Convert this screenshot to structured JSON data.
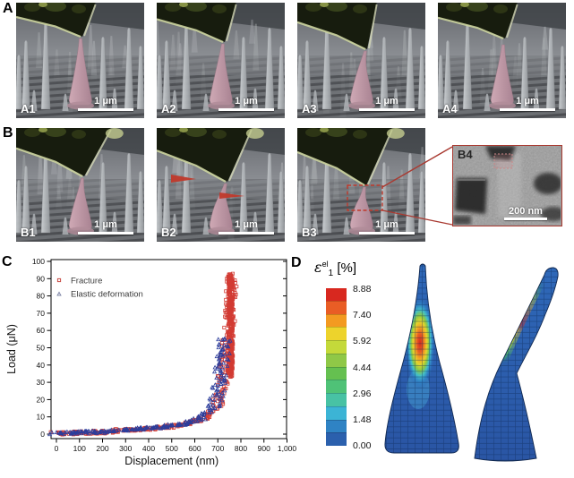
{
  "figure_labels": {
    "A": "A",
    "B": "B",
    "C": "C",
    "D": "D"
  },
  "sem_rows": {
    "A": {
      "panels": [
        {
          "id": "A1",
          "scale_bar": "1 μm"
        },
        {
          "id": "A2",
          "scale_bar": "1 μm"
        },
        {
          "id": "A3",
          "scale_bar": "1 μm"
        },
        {
          "id": "A4",
          "scale_bar": "1 μm"
        }
      ]
    },
    "B": {
      "panels": [
        {
          "id": "B1",
          "scale_bar": "1 μm"
        },
        {
          "id": "B2",
          "scale_bar": "1 μm"
        },
        {
          "id": "B3",
          "scale_bar": "1 μm"
        }
      ],
      "inset": {
        "id": "B4",
        "scale_bar": "200 nm"
      }
    }
  },
  "chart_data": {
    "type": "scatter",
    "title": "",
    "xlabel": "Displacement (nm)",
    "ylabel": "Load (μN)",
    "xlim": [
      0,
      1000
    ],
    "ylim": [
      0,
      100
    ],
    "grid": false,
    "legend_position": "top-left",
    "xtick_labels": [
      "0",
      "100",
      "200",
      "300",
      "400",
      "500",
      "600",
      "700",
      "800",
      "900",
      "1,000"
    ],
    "ytick_labels": [
      "0",
      "10",
      "20",
      "30",
      "40",
      "50",
      "60",
      "70",
      "80",
      "90",
      "100"
    ],
    "legend": [
      {
        "label": "Fracture",
        "marker": "open-square",
        "color": "#c84a44"
      },
      {
        "label": "Elastic deformation",
        "marker": "open-triangle",
        "color": "#8087a8"
      }
    ],
    "series": [
      {
        "name": "Fracture",
        "marker": "open-square",
        "color": "#d23b33",
        "points": [
          [
            0,
            0.4
          ],
          [
            100,
            0.8
          ],
          [
            200,
            1.2
          ],
          [
            300,
            2.4
          ],
          [
            400,
            3.3
          ],
          [
            500,
            4.6
          ],
          [
            560,
            5.8
          ],
          [
            600,
            7.2
          ],
          [
            640,
            9.5
          ],
          [
            670,
            12.5
          ],
          [
            690,
            15
          ],
          [
            705,
            20
          ],
          [
            715,
            26
          ],
          [
            725,
            34
          ],
          [
            733,
            42
          ],
          [
            740,
            50
          ],
          [
            746,
            58
          ],
          [
            752,
            68
          ],
          [
            756,
            78
          ],
          [
            759,
            86
          ],
          [
            760,
            92
          ]
        ],
        "fracture_band": {
          "x_range": [
            745,
            766
          ],
          "y_range": [
            33,
            93
          ]
        }
      },
      {
        "name": "Elastic deformation",
        "marker": "open-triangle",
        "color": "#2c3d9b",
        "points": [
          [
            0,
            0.5
          ],
          [
            100,
            0.9
          ],
          [
            200,
            1.3
          ],
          [
            280,
            2.3
          ],
          [
            320,
            2.7
          ],
          [
            360,
            3.1
          ],
          [
            400,
            3.5
          ],
          [
            450,
            4.1
          ],
          [
            500,
            4.7
          ],
          [
            550,
            5.7
          ],
          [
            590,
            6.9
          ],
          [
            620,
            8.6
          ],
          [
            645,
            10.8
          ],
          [
            665,
            13.5
          ],
          [
            685,
            17.5
          ],
          [
            700,
            24
          ],
          [
            710,
            31
          ],
          [
            716,
            38
          ],
          [
            722,
            46
          ],
          [
            726,
            52
          ],
          [
            728,
            56
          ]
        ]
      }
    ]
  },
  "panel_d": {
    "strain_label": {
      "base": "ε",
      "sup": "el",
      "sub": "1",
      "unit": "[%]"
    },
    "colorbar": {
      "tick_labels": [
        "8.88",
        "7.40",
        "5.92",
        "4.44",
        "2.96",
        "1.48",
        "0.00"
      ],
      "segment_colors": [
        "#d8281f",
        "#e95d25",
        "#f39a21",
        "#edd32c",
        "#c4d93a",
        "#8fc847",
        "#65c050",
        "#4fc277",
        "#48c2a4",
        "#3cb4d5",
        "#2f83c4",
        "#2b60ad"
      ]
    }
  }
}
